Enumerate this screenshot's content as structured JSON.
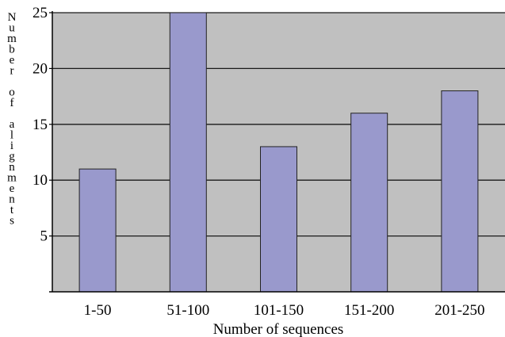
{
  "chart_data": {
    "type": "bar",
    "title": "",
    "xlabel": "Number of sequences",
    "ylabel": "Number of alignments",
    "categories": [
      "1-50",
      "51-100",
      "101-150",
      "151-200",
      "201-250"
    ],
    "values": [
      11,
      25,
      13,
      16,
      18
    ],
    "ylim": [
      0,
      25
    ],
    "yticks": [
      5,
      10,
      15,
      20,
      25
    ],
    "grid": true,
    "legend": "none",
    "colors": {
      "bar": "#9999cc",
      "bar_stroke": "#222222",
      "plot_background": "#c0c0c0",
      "gridline": "#1a1a1a",
      "axis": "#000000"
    }
  }
}
